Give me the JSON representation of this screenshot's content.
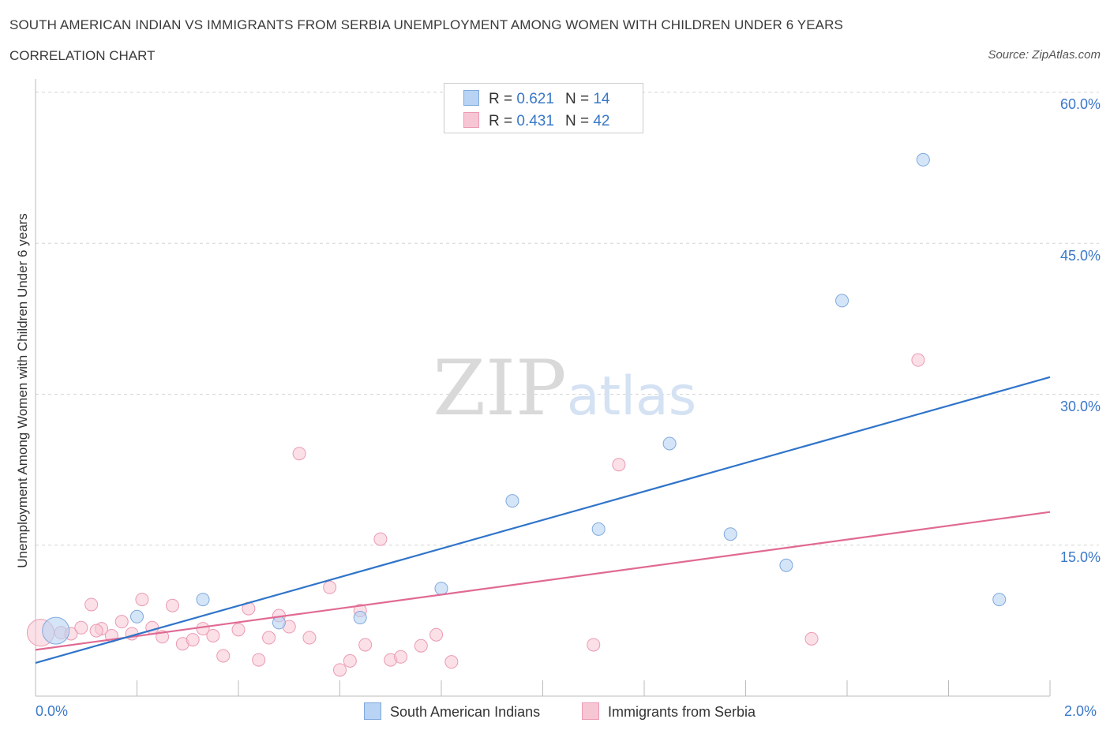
{
  "title": "SOUTH AMERICAN INDIAN VS IMMIGRANTS FROM SERBIA UNEMPLOYMENT AMONG WOMEN WITH CHILDREN UNDER 6 YEARS",
  "subtitle": "CORRELATION CHART",
  "source": "Source: ZipAtlas.com",
  "watermark": {
    "zip": "ZIP",
    "atlas": "atlas"
  },
  "legend": {
    "r_label": "R =",
    "n_label": "N =",
    "rows": [
      {
        "r": "0.621",
        "n": "14"
      },
      {
        "r": "0.431",
        "n": "42"
      }
    ]
  },
  "colors": {
    "blue_fill": "#b8d3f3",
    "blue_stroke": "#7fa8dd",
    "blue_line": "#2f74c9",
    "pink_fill": "#f7c6d4",
    "pink_stroke": "#eb9ab2",
    "pink_line": "#e06a93",
    "tick_text": "#3a78c9",
    "grid": "#d5d5d5"
  },
  "chart_data": {
    "type": "scatter",
    "title": "SOUTH AMERICAN INDIAN VS IMMIGRANTS FROM SERBIA UNEMPLOYMENT AMONG WOMEN WITH CHILDREN UNDER 6 YEARS",
    "xlabel": "",
    "ylabel": "Unemployment Among Women with Children Under 6 years",
    "xlim": [
      0,
      2.0
    ],
    "ylim": [
      0,
      61
    ],
    "x_ticks": [
      "0.0%",
      "2.0%"
    ],
    "y_ticks": [
      {
        "value": 15,
        "label": "15.0%"
      },
      {
        "value": 30,
        "label": "30.0%"
      },
      {
        "value": 45,
        "label": "45.0%"
      },
      {
        "value": 60,
        "label": "60.0%"
      }
    ],
    "series": [
      {
        "name": "South American Indians",
        "points": [
          {
            "x": 0.04,
            "y": 6.5,
            "size": "large"
          },
          {
            "x": 0.2,
            "y": 7.9
          },
          {
            "x": 0.33,
            "y": 9.6
          },
          {
            "x": 0.48,
            "y": 7.3
          },
          {
            "x": 0.64,
            "y": 7.8
          },
          {
            "x": 0.8,
            "y": 10.7
          },
          {
            "x": 0.94,
            "y": 19.4
          },
          {
            "x": 1.11,
            "y": 16.6
          },
          {
            "x": 1.25,
            "y": 25.1
          },
          {
            "x": 1.37,
            "y": 16.1
          },
          {
            "x": 1.48,
            "y": 13.0
          },
          {
            "x": 1.59,
            "y": 39.3
          },
          {
            "x": 1.75,
            "y": 53.3
          },
          {
            "x": 1.9,
            "y": 9.6
          }
        ],
        "trend": {
          "x0": 0.0,
          "y0": 3.3,
          "x1": 2.0,
          "y1": 31.7
        }
      },
      {
        "name": "Immigrants from Serbia",
        "points": [
          {
            "x": 0.01,
            "y": 6.3,
            "size": "large"
          },
          {
            "x": 0.05,
            "y": 6.3
          },
          {
            "x": 0.07,
            "y": 6.2
          },
          {
            "x": 0.09,
            "y": 6.8
          },
          {
            "x": 0.11,
            "y": 9.1
          },
          {
            "x": 0.13,
            "y": 6.7
          },
          {
            "x": 0.15,
            "y": 6.0
          },
          {
            "x": 0.17,
            "y": 7.4
          },
          {
            "x": 0.19,
            "y": 6.2
          },
          {
            "x": 0.21,
            "y": 9.6
          },
          {
            "x": 0.23,
            "y": 6.8
          },
          {
            "x": 0.25,
            "y": 5.9
          },
          {
            "x": 0.27,
            "y": 9.0
          },
          {
            "x": 0.29,
            "y": 5.2
          },
          {
            "x": 0.31,
            "y": 5.6
          },
          {
            "x": 0.33,
            "y": 6.7
          },
          {
            "x": 0.35,
            "y": 6.0
          },
          {
            "x": 0.37,
            "y": 4.0
          },
          {
            "x": 0.4,
            "y": 6.6
          },
          {
            "x": 0.42,
            "y": 8.7
          },
          {
            "x": 0.44,
            "y": 3.6
          },
          {
            "x": 0.46,
            "y": 5.8
          },
          {
            "x": 0.48,
            "y": 8.0
          },
          {
            "x": 0.5,
            "y": 6.9
          },
          {
            "x": 0.52,
            "y": 24.1
          },
          {
            "x": 0.54,
            "y": 5.8
          },
          {
            "x": 0.58,
            "y": 10.8
          },
          {
            "x": 0.6,
            "y": 2.6
          },
          {
            "x": 0.62,
            "y": 3.5
          },
          {
            "x": 0.64,
            "y": 8.5
          },
          {
            "x": 0.65,
            "y": 5.1
          },
          {
            "x": 0.68,
            "y": 15.6
          },
          {
            "x": 0.7,
            "y": 3.6
          },
          {
            "x": 0.72,
            "y": 3.9
          },
          {
            "x": 0.76,
            "y": 5.0
          },
          {
            "x": 0.79,
            "y": 6.1
          },
          {
            "x": 0.82,
            "y": 3.4
          },
          {
            "x": 1.1,
            "y": 5.1
          },
          {
            "x": 1.15,
            "y": 23.0
          },
          {
            "x": 1.53,
            "y": 5.7
          },
          {
            "x": 1.74,
            "y": 33.4
          },
          {
            "x": 0.12,
            "y": 6.5
          }
        ],
        "trend": {
          "x0": 0.0,
          "y0": 4.6,
          "x1": 2.0,
          "y1": 18.3
        }
      }
    ],
    "legend_position": "top-center"
  }
}
